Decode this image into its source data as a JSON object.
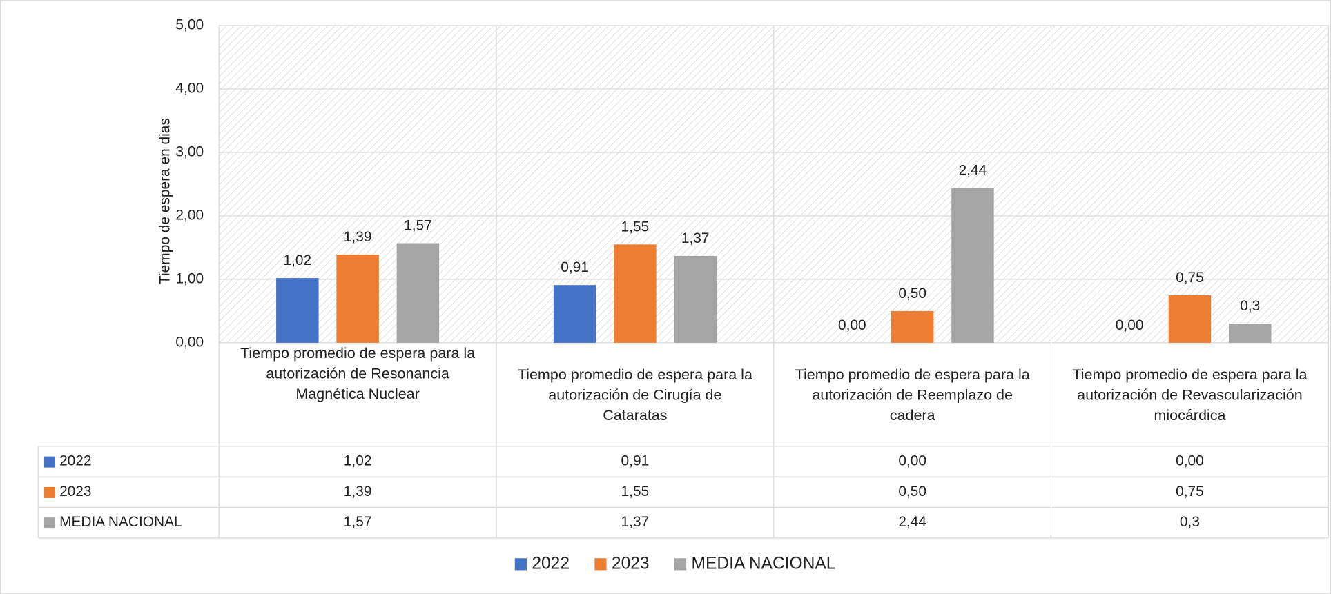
{
  "chart_data": {
    "type": "bar",
    "y_label": "Tiempo de espera en dias",
    "categories": [
      "Tiempo promedio de espera para la autorización de Resonancia Magnética Nuclear",
      "Tiempo promedio de espera para la autorización de Cirugía de Cataratas",
      "Tiempo promedio de espera para la autorización de Reemplazo de cadera",
      "Tiempo promedio de espera para la autorización de Revascularización miocárdica"
    ],
    "series": [
      {
        "name": "2022",
        "color": "#4472c4",
        "values": [
          1.02,
          0.91,
          0,
          0
        ],
        "value_labels": [
          "1,02",
          "0,91",
          "0,00",
          "0,00"
        ]
      },
      {
        "name": "2023",
        "color": "#ed7d31",
        "values": [
          1.39,
          1.55,
          0.5,
          0.75
        ],
        "value_labels": [
          "1,39",
          "1,55",
          "0,50",
          "0,75"
        ]
      },
      {
        "name": "MEDIA NACIONAL",
        "color": "#a5a5a5",
        "values": [
          1.57,
          1.37,
          2.44,
          0.3
        ],
        "value_labels": [
          "1,57",
          "1,37",
          "2,44",
          "0,3"
        ]
      }
    ],
    "ylim": [
      0,
      5
    ],
    "yticks": [
      {
        "value": 0,
        "label": "0,00"
      },
      {
        "value": 1,
        "label": "1,00"
      },
      {
        "value": 2,
        "label": "2,00"
      },
      {
        "value": 3,
        "label": "3,00"
      },
      {
        "value": 4,
        "label": "4,00"
      },
      {
        "value": 5,
        "label": "5,00"
      }
    ],
    "grid": true,
    "legend": "bottom"
  }
}
